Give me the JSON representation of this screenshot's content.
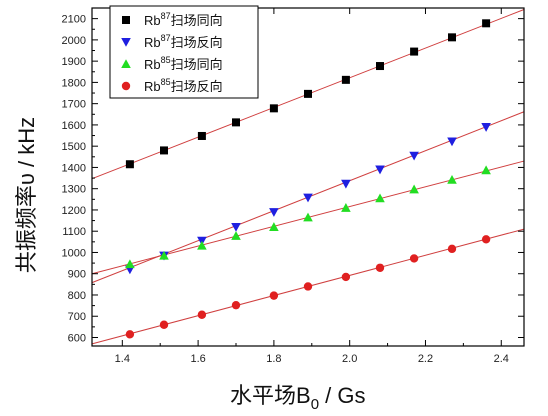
{
  "chart_data": {
    "type": "scatter",
    "xlabel": "水平场B",
    "xlabel_sub": "0",
    "xlabel_unit": " / Gs",
    "ylabel": "共振频率υ / kHz",
    "xlim": [
      1.32,
      2.46
    ],
    "ylim": [
      560,
      2150
    ],
    "x_ticks": [
      1.4,
      1.6,
      1.8,
      2.0,
      2.2,
      2.4
    ],
    "x_tick_labels": [
      "1.4",
      "1.6",
      "1.8",
      "2.0",
      "2.2",
      "2.4"
    ],
    "y_ticks": [
      600,
      700,
      800,
      900,
      1000,
      1100,
      1200,
      1300,
      1400,
      1500,
      1600,
      1700,
      1800,
      1900,
      2000,
      2100
    ],
    "y_tick_labels": [
      "600",
      "700",
      "800",
      "900",
      "1000",
      "1100",
      "1200",
      "1300",
      "1400",
      "1500",
      "1600",
      "1700",
      "1800",
      "1900",
      "2000",
      "2100"
    ],
    "legend_position": "top-left",
    "series": [
      {
        "name_prefix": "Rb",
        "name_sup": "87",
        "name_suffix": "扫场同向",
        "marker": "square",
        "color": "#000000",
        "x": [
          1.42,
          1.51,
          1.61,
          1.7,
          1.8,
          1.89,
          1.99,
          2.08,
          2.17,
          2.27,
          2.36
        ],
        "y": [
          1415,
          1480,
          1548,
          1612,
          1678,
          1746,
          1812,
          1877,
          1945,
          2012,
          2078
        ],
        "fit": {
          "x": [
            1.32,
            2.46
          ],
          "y": [
            1347,
            2143
          ]
        }
      },
      {
        "name_prefix": "Rb",
        "name_sup": "87",
        "name_suffix": "扫场反向",
        "marker": "triangle-down",
        "color": "#1f1fe0",
        "x": [
          1.42,
          1.51,
          1.61,
          1.7,
          1.8,
          1.89,
          1.99,
          2.08,
          2.17,
          2.27,
          2.36
        ],
        "y": [
          920,
          985,
          1055,
          1120,
          1190,
          1258,
          1323,
          1390,
          1455,
          1522,
          1590
        ],
        "fit": {
          "x": [
            1.32,
            2.46
          ],
          "y": [
            858,
            1662
          ]
        }
      },
      {
        "name_prefix": "Rb",
        "name_sup": "85",
        "name_suffix": "扫场同向",
        "marker": "triangle-up",
        "color": "#22dd22",
        "x": [
          1.42,
          1.51,
          1.61,
          1.7,
          1.8,
          1.89,
          1.99,
          2.08,
          2.17,
          2.27,
          2.36
        ],
        "y": [
          945,
          985,
          1032,
          1078,
          1120,
          1165,
          1210,
          1255,
          1297,
          1342,
          1387
        ],
        "fit": {
          "x": [
            1.32,
            2.46
          ],
          "y": [
            900,
            1430
          ]
        }
      },
      {
        "name_prefix": "Rb",
        "name_sup": "85",
        "name_suffix": "扫场反向",
        "marker": "circle",
        "color": "#e02020",
        "x": [
          1.42,
          1.51,
          1.61,
          1.7,
          1.8,
          1.89,
          1.99,
          2.08,
          2.17,
          2.27,
          2.36
        ],
        "y": [
          615,
          660,
          707,
          752,
          797,
          840,
          885,
          928,
          972,
          1017,
          1062
        ],
        "fit": {
          "x": [
            1.32,
            2.46
          ],
          "y": [
            570,
            1110
          ]
        }
      }
    ]
  }
}
